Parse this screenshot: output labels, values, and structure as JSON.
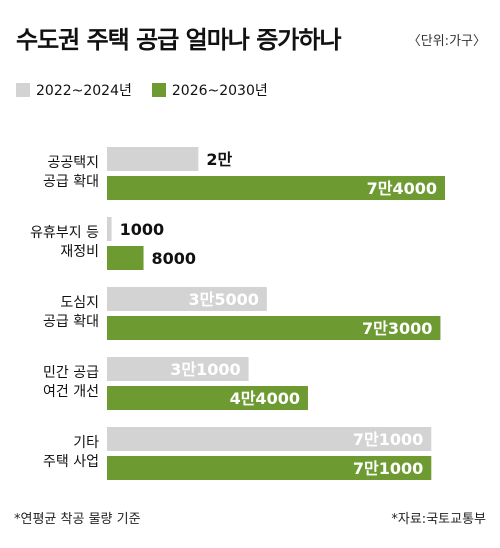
{
  "header": {
    "title": "수도권 주택 공급 얼마나 증가하나",
    "unit": "〈단위:가구〉"
  },
  "footer": {
    "note": "*연평균 착공 물량 기준",
    "source": "*자료:국토교통부"
  },
  "colors": {
    "series_2022": "#d3d3d3",
    "series_2026": "#6e9a32",
    "label_dark": "#111111",
    "label_light": "#ffffff"
  },
  "chart_data": {
    "type": "bar",
    "orientation": "horizontal",
    "categories": [
      [
        "공공택지",
        "공급 확대"
      ],
      [
        "유휴부지 등",
        "재정비"
      ],
      [
        "도심지",
        "공급 확대"
      ],
      [
        "민간 공급",
        "여건 개선"
      ],
      [
        "기타",
        "주택 사업"
      ]
    ],
    "series": [
      {
        "name": "2022~2024년",
        "values": [
          20000,
          1000,
          35000,
          31000,
          71000
        ],
        "labels": [
          "2만",
          "1000",
          "3만5000",
          "3만1000",
          "7만1000"
        ]
      },
      {
        "name": "2026~2030년",
        "values": [
          74000,
          8000,
          73000,
          44000,
          71000
        ],
        "labels": [
          "7만4000",
          "8000",
          "7만3000",
          "4만4000",
          "7만1000"
        ]
      }
    ],
    "xlim": [
      0,
      74000
    ],
    "grid": false,
    "legend": "top-left"
  }
}
